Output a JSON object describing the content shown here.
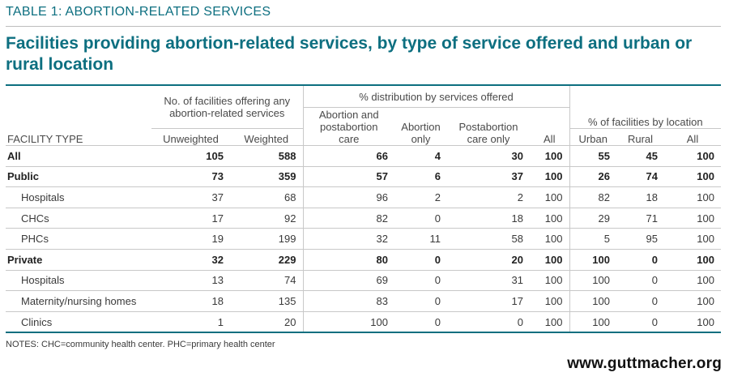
{
  "table_label": "TABLE 1: ABORTION-RELATED SERVICES",
  "title": "Facilities providing abortion-related services, by type of service offered and urban or rural location",
  "header": {
    "facility_type": "FACILITY TYPE",
    "group_count": "No. of facilities offering any abortion-related services",
    "group_distribution": "% distribution by services offered",
    "group_location": "% of facilities by location",
    "unweighted": "Unweighted",
    "weighted": "Weighted",
    "abortion_postabortion": "Abortion and postabortion care",
    "abortion_only": "Abortion only",
    "postabortion_only": "Postabortion care only",
    "all_dist": "All",
    "urban": "Urban",
    "rural": "Rural",
    "all_loc": "All"
  },
  "rows": [
    {
      "name": "All",
      "bold": true,
      "indent": false,
      "values": [
        "105",
        "588",
        "66",
        "4",
        "30",
        "100",
        "55",
        "45",
        "100"
      ]
    },
    {
      "name": "Public",
      "bold": true,
      "indent": false,
      "values": [
        "73",
        "359",
        "57",
        "6",
        "37",
        "100",
        "26",
        "74",
        "100"
      ]
    },
    {
      "name": "Hospitals",
      "bold": false,
      "indent": true,
      "values": [
        "37",
        "68",
        "96",
        "2",
        "2",
        "100",
        "82",
        "18",
        "100"
      ]
    },
    {
      "name": "CHCs",
      "bold": false,
      "indent": true,
      "values": [
        "17",
        "92",
        "82",
        "0",
        "18",
        "100",
        "29",
        "71",
        "100"
      ]
    },
    {
      "name": "PHCs",
      "bold": false,
      "indent": true,
      "values": [
        "19",
        "199",
        "32",
        "11",
        "58",
        "100",
        "5",
        "95",
        "100"
      ]
    },
    {
      "name": "Private",
      "bold": true,
      "indent": false,
      "values": [
        "32",
        "229",
        "80",
        "0",
        "20",
        "100",
        "100",
        "0",
        "100"
      ]
    },
    {
      "name": "Hospitals",
      "bold": false,
      "indent": true,
      "values": [
        "13",
        "74",
        "69",
        "0",
        "31",
        "100",
        "100",
        "0",
        "100"
      ]
    },
    {
      "name": "Maternity/nursing homes",
      "bold": false,
      "indent": true,
      "values": [
        "18",
        "135",
        "83",
        "0",
        "17",
        "100",
        "100",
        "0",
        "100"
      ]
    },
    {
      "name": "Clinics",
      "bold": false,
      "indent": true,
      "values": [
        "1",
        "20",
        "100",
        "0",
        "0",
        "100",
        "100",
        "0",
        "100"
      ]
    }
  ],
  "notes": "NOTES: CHC=community health center. PHC=primary health center",
  "url": "www.guttmacher.org",
  "colors": {
    "accent": "#0d6f80",
    "rule": "#c8c8c8",
    "text": "#3a3a3a"
  }
}
